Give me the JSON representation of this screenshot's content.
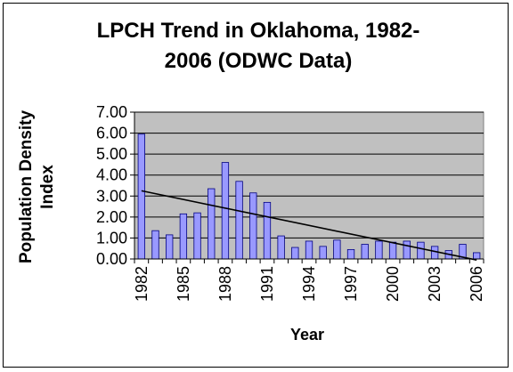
{
  "chart_data": {
    "type": "bar",
    "title_lines": [
      "LPCH Trend in Oklahoma, 1982-",
      "2006 (ODWC Data)"
    ],
    "ylabel_lines": [
      "Population Density",
      "Index"
    ],
    "xlabel": "Year",
    "ylim": [
      0,
      7
    ],
    "yticks": [
      "0.00",
      "1.00",
      "2.00",
      "3.00",
      "4.00",
      "5.00",
      "6.00",
      "7.00"
    ],
    "categories": [
      "1982",
      "1983",
      "1984",
      "1985",
      "1986",
      "1987",
      "1988",
      "1989",
      "1990",
      "1991",
      "1992",
      "1993",
      "1994",
      "1995",
      "1996",
      "1997",
      "1998",
      "1999",
      "2000",
      "2001",
      "2002",
      "2003",
      "2004",
      "2005",
      "2006"
    ],
    "xtick_labels": [
      "1982",
      "1985",
      "1988",
      "1991",
      "1994",
      "1997",
      "2000",
      "2003",
      "2006"
    ],
    "values": [
      5.95,
      1.35,
      1.15,
      2.15,
      2.2,
      3.35,
      4.6,
      3.7,
      3.15,
      2.7,
      1.1,
      0.55,
      0.85,
      0.6,
      0.9,
      0.45,
      0.7,
      0.85,
      0.8,
      0.85,
      0.8,
      0.6,
      0.4,
      0.7,
      0.3
    ],
    "trendline": {
      "start": [
        1982,
        3.25
      ],
      "end": [
        2006,
        -0.05
      ]
    },
    "grid": true,
    "colors": {
      "bar_fill": "#9999ff",
      "bar_stroke": "#000080",
      "plot_bg": "#c0c0c0",
      "trend": "#000000"
    }
  }
}
